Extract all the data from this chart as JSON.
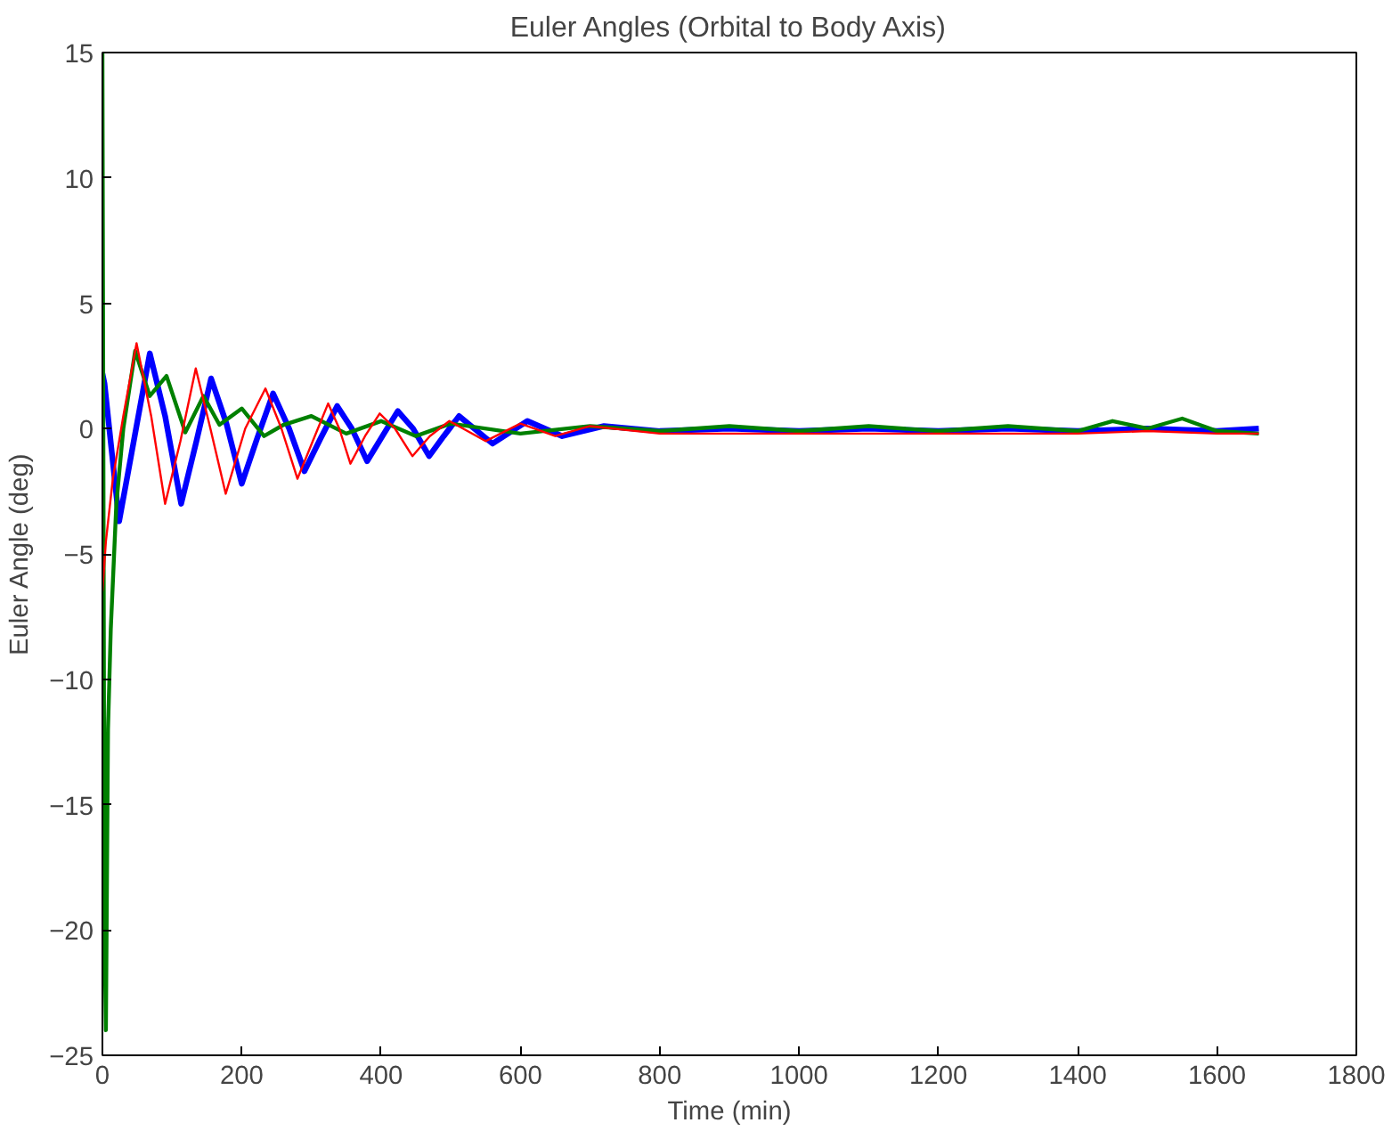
{
  "chart_data": {
    "type": "line",
    "title": "Euler Angles (Orbital to Body Axis)",
    "xlabel": "Time (min)",
    "ylabel": "Euler Angle (deg)",
    "xlim": [
      0,
      1800
    ],
    "ylim": [
      -25,
      15
    ],
    "xticks": [
      0,
      200,
      400,
      600,
      800,
      1000,
      1200,
      1400,
      1600,
      1800
    ],
    "yticks": [
      -25,
      -20,
      -15,
      -10,
      -5,
      0,
      5,
      10,
      15
    ],
    "grid": false,
    "line_style": "solid",
    "series": [
      {
        "color": "#0000ff",
        "x": [
          0,
          3,
          24,
          45,
          68,
          90,
          113,
          135,
          156,
          178,
          200,
          222,
          245,
          268,
          290,
          313,
          337,
          358,
          380,
          402,
          424,
          446,
          469,
          490,
          512,
          560,
          610,
          660,
          720,
          800,
          900,
          1000,
          1100,
          1200,
          1300,
          1400,
          1500,
          1600,
          1660
        ],
        "values": [
          2.2,
          1.8,
          -3.7,
          -0.5,
          3.0,
          0.5,
          -3.0,
          -0.5,
          2.0,
          0.2,
          -2.2,
          -0.4,
          1.4,
          0.0,
          -1.7,
          -0.4,
          0.9,
          0.0,
          -1.3,
          -0.3,
          0.7,
          0.0,
          -1.1,
          -0.3,
          0.5,
          -0.6,
          0.3,
          -0.3,
          0.1,
          -0.1,
          0.0,
          -0.1,
          0.0,
          -0.1,
          0.0,
          -0.1,
          0.0,
          -0.1,
          0.0
        ]
      },
      {
        "color": "#008000",
        "x": [
          0,
          3,
          5,
          8,
          12,
          20,
          30,
          47,
          68,
          92,
          119,
          145,
          168,
          200,
          232,
          260,
          300,
          350,
          400,
          450,
          500,
          600,
          700,
          800,
          900,
          1000,
          1100,
          1200,
          1300,
          1400,
          1450,
          1500,
          1550,
          1600,
          1660
        ],
        "values": [
          15,
          -20,
          -24,
          -12,
          -8,
          -3,
          0,
          3.1,
          1.3,
          2.1,
          -0.15,
          1.3,
          0.15,
          0.8,
          -0.3,
          0.15,
          0.5,
          -0.2,
          0.3,
          -0.3,
          0.2,
          -0.2,
          0.1,
          -0.1,
          0.1,
          -0.1,
          0.1,
          -0.1,
          0.1,
          -0.1,
          0.3,
          0.0,
          0.4,
          -0.1,
          -0.2
        ]
      },
      {
        "color": "#ff0000",
        "x": [
          0,
          5,
          15,
          30,
          49,
          70,
          90,
          112,
          134,
          155,
          177,
          205,
          234,
          257,
          280,
          302,
          324,
          340,
          356,
          377,
          398,
          420,
          445,
          470,
          498,
          550,
          600,
          650,
          700,
          800,
          900,
          1000,
          1100,
          1200,
          1300,
          1400,
          1500,
          1600,
          1660
        ],
        "values": [
          -6.5,
          -4.5,
          -2,
          0.5,
          3.4,
          0.5,
          -3.0,
          -0.5,
          2.4,
          0.0,
          -2.6,
          0.0,
          1.6,
          0.0,
          -2.0,
          -0.5,
          1.0,
          0.0,
          -1.4,
          -0.3,
          0.6,
          0.0,
          -1.1,
          -0.3,
          0.3,
          -0.5,
          0.2,
          -0.3,
          0.1,
          -0.2,
          -0.2,
          -0.2,
          -0.2,
          -0.2,
          -0.2,
          -0.2,
          -0.1,
          -0.2,
          -0.2
        ]
      }
    ]
  }
}
